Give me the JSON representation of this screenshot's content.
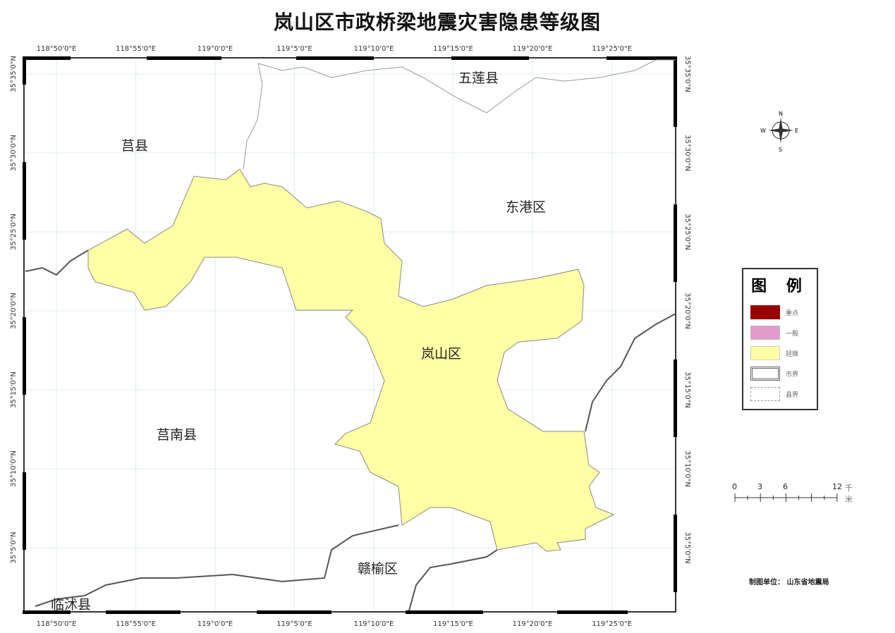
{
  "title": "岚山区市政桥梁地震灾害隐患等级图",
  "map": {
    "lon_labels": [
      "118°50'0\"E",
      "118°55'0\"E",
      "119°0'0\"E",
      "119°5'0\"E",
      "119°10'0\"E",
      "119°15'0\"E",
      "119°20'0\"E",
      "119°25'0\"E"
    ],
    "lat_labels": [
      "35°35'0\"N",
      "35°30'0\"N",
      "35°25'0\"N",
      "35°20'0\"N",
      "35°15'0\"N",
      "35°10'0\"N",
      "35°5'0\"N"
    ],
    "regions": {
      "wulian": "五莲县",
      "juxian": "莒县",
      "donggang": "东港区",
      "lanshan": "岚山区",
      "junan": "莒南县",
      "ganyu": "赣榆区",
      "linshu": "临沭县"
    },
    "fill_color": "#FFFFA6"
  },
  "compass": {
    "n": "N",
    "s": "S",
    "e": "E",
    "w": "W"
  },
  "legend": {
    "title": "图 例",
    "items": [
      {
        "label": "重点",
        "color": "#990000"
      },
      {
        "label": "一般",
        "color": "#E39ACF"
      },
      {
        "label": "轻微",
        "color": "#FFFFA6"
      },
      {
        "label": "市界",
        "color": "#666666"
      },
      {
        "label": "县界",
        "color": "#999999"
      }
    ]
  },
  "scale": {
    "ticks": [
      "0",
      "3",
      "6",
      "12"
    ],
    "unit": "千米"
  },
  "credit": "制图单位：  山东省地震局"
}
